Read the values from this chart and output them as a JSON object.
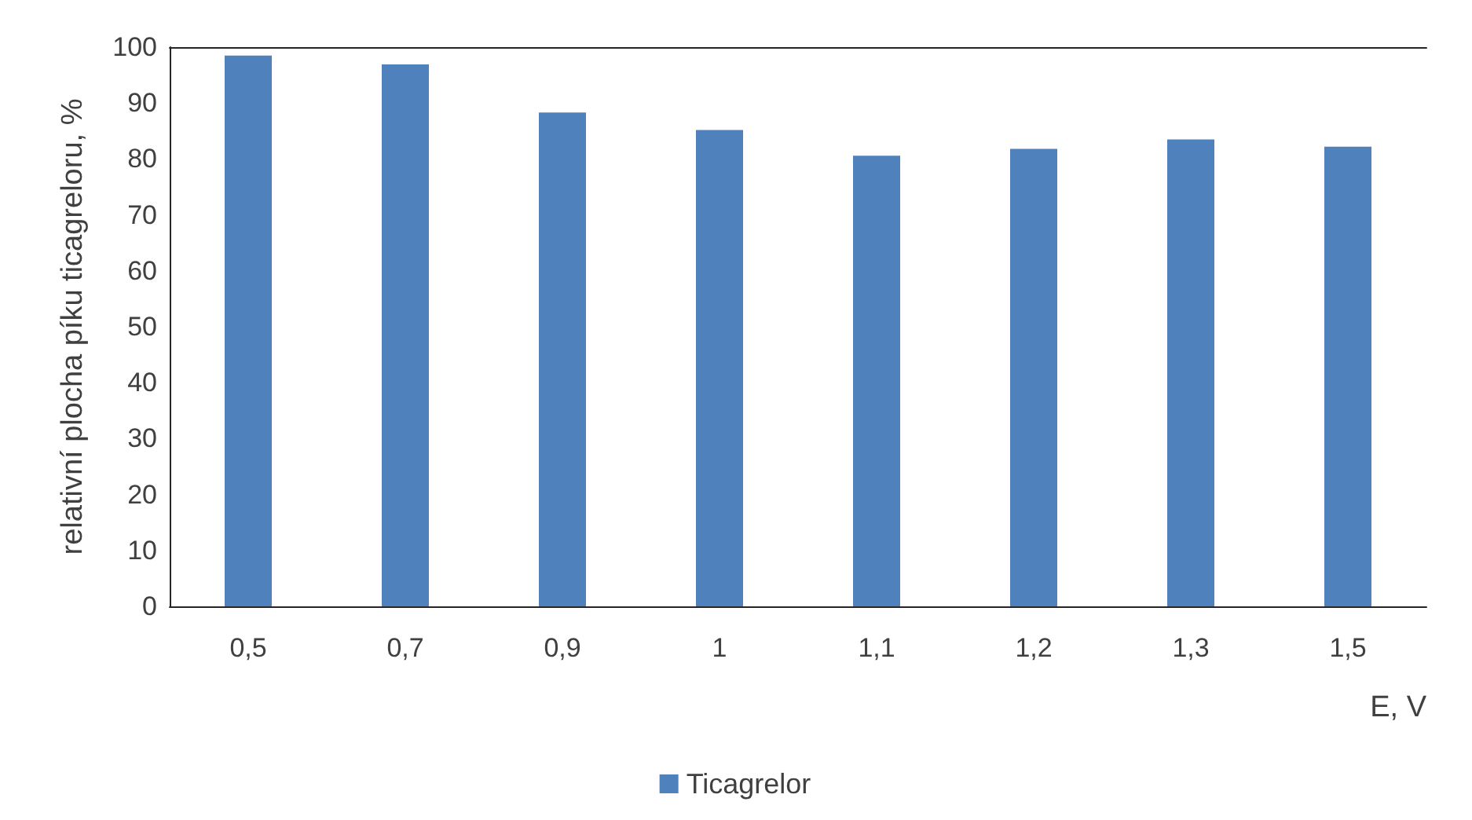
{
  "chart_data": {
    "type": "bar",
    "xlabel": "E, V",
    "ylabel": "relativní plocha píku ticagreloru, %",
    "categories": [
      "0,5",
      "0,7",
      "0,9",
      "1",
      "1,1",
      "1,2",
      "1,3",
      "1,5"
    ],
    "series": [
      {
        "name": "Ticagrelor",
        "color": "#4f81bd",
        "values": [
          98.5,
          96.9,
          88.3,
          85.2,
          80.6,
          81.8,
          83.5,
          82.2
        ]
      }
    ],
    "ylim": [
      0,
      100
    ],
    "yticks": [
      0,
      10,
      20,
      30,
      40,
      50,
      60,
      70,
      80,
      90,
      100
    ],
    "grid": false,
    "legend": "bottom"
  }
}
